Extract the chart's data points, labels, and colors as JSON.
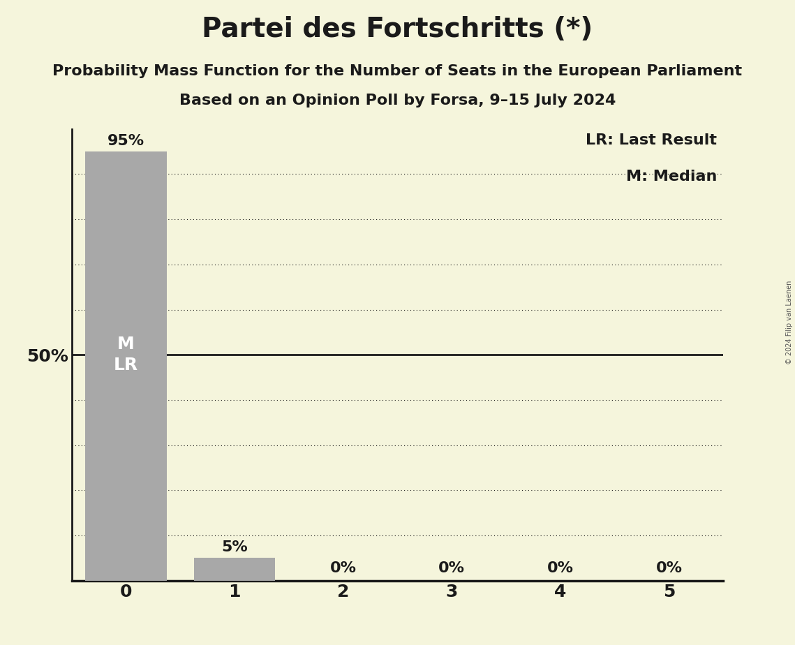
{
  "title": "Partei des Fortschritts (*)",
  "subtitle1": "Probability Mass Function for the Number of Seats in the European Parliament",
  "subtitle2": "Based on an Opinion Poll by Forsa, 9–15 July 2024",
  "copyright": "© 2024 Filip van Laenen",
  "categories": [
    0,
    1,
    2,
    3,
    4,
    5
  ],
  "values": [
    0.95,
    0.05,
    0.0,
    0.0,
    0.0,
    0.0
  ],
  "bar_color": "#a8a8a8",
  "background_color": "#f5f5dc",
  "text_color": "#1a1a1a",
  "bar_labels": [
    "95%",
    "5%",
    "0%",
    "0%",
    "0%",
    "0%"
  ],
  "y_special_lines": [
    0.5
  ],
  "y_gridlines": [
    0.1,
    0.2,
    0.3,
    0.4,
    0.6,
    0.7,
    0.8,
    0.9
  ],
  "ylim": [
    0,
    1.0
  ],
  "ytick_positions": [
    0.5
  ],
  "ytick_labels": [
    "50%"
  ],
  "legend_text_lr": "LR: Last Result",
  "legend_text_m": "M: Median",
  "title_fontsize": 28,
  "subtitle_fontsize": 16,
  "tick_fontsize": 18,
  "bar_label_fontsize": 16,
  "ylabel_fontsize": 18,
  "legend_fontsize": 16,
  "inner_label_fontsize": 18,
  "bar_width": 0.75
}
